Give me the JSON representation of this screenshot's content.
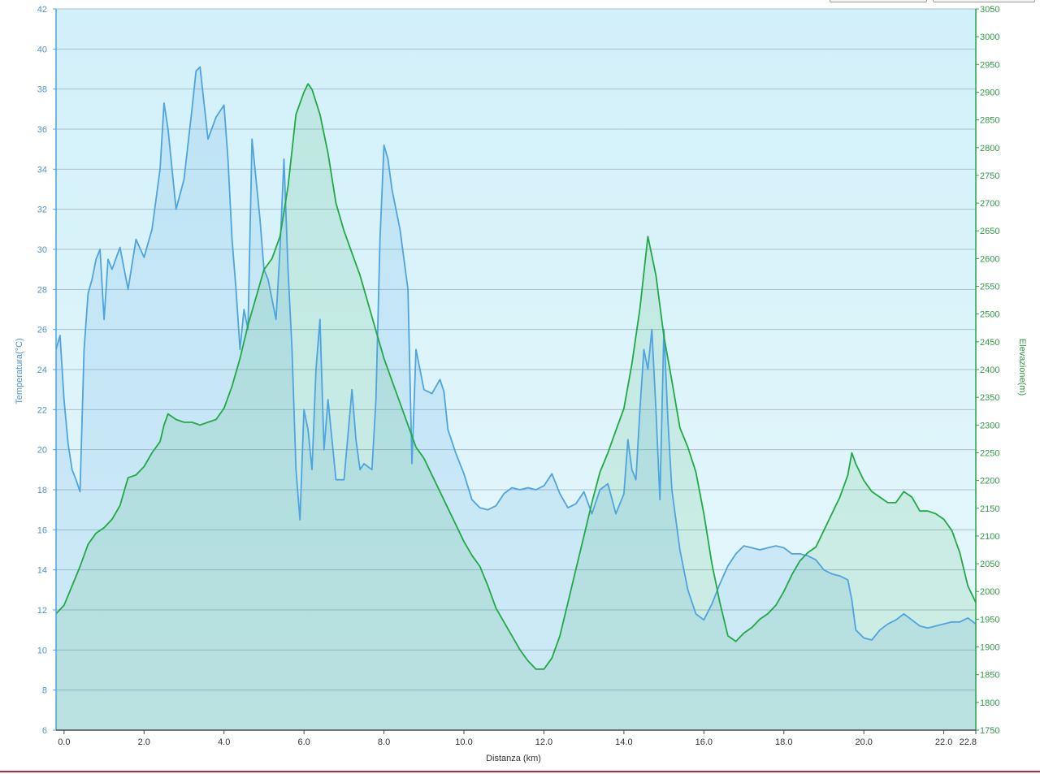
{
  "colors": {
    "temperature": "#4fa3e0",
    "elevation": "#22a845",
    "temp_axis_text": "#4f95cf",
    "elev_axis_text": "#2f9a46",
    "plot_bg_top": "#d2f0fa",
    "plot_bg_bottom": "#e7f8fb",
    "grid": "#a7c0cc",
    "bottom_rule": "#c0282d"
  },
  "chart_data": {
    "type": "line",
    "xlabel": "Distanza  (km)",
    "ylabel_left": "Temperatura(°C)",
    "ylabel_right": "Elevazione(m)",
    "x_ticks": [
      "0.0",
      "2.0",
      "4.0",
      "6.0",
      "8.0",
      "10.0",
      "12.0",
      "14.0",
      "16.0",
      "18.0",
      "20.0",
      "22.0",
      "22.8"
    ],
    "y_left_ticks": [
      "42",
      "40",
      "38",
      "36",
      "34",
      "32",
      "30",
      "28",
      "26",
      "24",
      "22",
      "20",
      "18",
      "16",
      "14",
      "12",
      "10",
      "8",
      "6"
    ],
    "y_right_ticks": [
      "3050",
      "3000",
      "2950",
      "2900",
      "2850",
      "2800",
      "2750",
      "2700",
      "2650",
      "2600",
      "2550",
      "2500",
      "2450",
      "2400",
      "2350",
      "2300",
      "2250",
      "2200",
      "2150",
      "2100",
      "2050",
      "2000",
      "1950",
      "1900",
      "1850",
      "1800",
      "1750"
    ],
    "xlim": [
      -0.2,
      22.8
    ],
    "ylim_left": [
      6,
      42
    ],
    "ylim_right": [
      1750,
      3050
    ],
    "grid": true,
    "series": [
      {
        "name": "Temperatura",
        "axis": "left",
        "x": [
          -0.2,
          -0.1,
          0.0,
          0.1,
          0.2,
          0.3,
          0.4,
          0.5,
          0.6,
          0.7,
          0.8,
          0.9,
          1.0,
          1.1,
          1.2,
          1.4,
          1.6,
          1.8,
          2.0,
          2.2,
          2.4,
          2.5,
          2.6,
          2.8,
          3.0,
          3.2,
          3.3,
          3.4,
          3.6,
          3.8,
          4.0,
          4.1,
          4.2,
          4.3,
          4.4,
          4.5,
          4.6,
          4.7,
          4.8,
          4.9,
          5.0,
          5.1,
          5.2,
          5.3,
          5.4,
          5.5,
          5.6,
          5.7,
          5.8,
          5.9,
          6.0,
          6.1,
          6.2,
          6.3,
          6.4,
          6.5,
          6.6,
          6.8,
          7.0,
          7.2,
          7.3,
          7.4,
          7.5,
          7.7,
          7.8,
          7.9,
          8.0,
          8.1,
          8.2,
          8.4,
          8.6,
          8.7,
          8.8,
          8.9,
          9.0,
          9.2,
          9.4,
          9.5,
          9.6,
          9.8,
          10.0,
          10.2,
          10.4,
          10.6,
          10.8,
          11.0,
          11.2,
          11.4,
          11.6,
          11.8,
          12.0,
          12.2,
          12.4,
          12.6,
          12.8,
          13.0,
          13.2,
          13.4,
          13.6,
          13.8,
          14.0,
          14.1,
          14.2,
          14.3,
          14.4,
          14.5,
          14.6,
          14.7,
          14.8,
          14.9,
          15.0,
          15.1,
          15.2,
          15.4,
          15.6,
          15.8,
          16.0,
          16.2,
          16.4,
          16.6,
          16.8,
          17.0,
          17.2,
          17.4,
          17.6,
          17.8,
          18.0,
          18.2,
          18.4,
          18.6,
          18.8,
          19.0,
          19.2,
          19.4,
          19.6,
          19.7,
          19.8,
          20.0,
          20.2,
          20.4,
          20.6,
          20.8,
          21.0,
          21.2,
          21.4,
          21.6,
          21.8,
          22.0,
          22.2,
          22.4,
          22.6,
          22.8
        ],
        "values": [
          25,
          25.7,
          22.5,
          20.3,
          19,
          18.5,
          17.9,
          25,
          27.8,
          28.5,
          29.5,
          30,
          26.5,
          29.5,
          29,
          30.1,
          28,
          30.5,
          29.6,
          31,
          34,
          37.3,
          36,
          32,
          33.5,
          37,
          38.9,
          39.1,
          35.5,
          36.6,
          37.2,
          34.5,
          30.5,
          28,
          25,
          27,
          26,
          35.5,
          33.5,
          31.5,
          29,
          28.5,
          27.5,
          26.5,
          30,
          34.5,
          29,
          25,
          19,
          16.5,
          22,
          21,
          19,
          24,
          26.5,
          20,
          22.5,
          18.5,
          18.5,
          23,
          20.5,
          19,
          19.3,
          19,
          22.5,
          30.5,
          35.2,
          34.5,
          33,
          31,
          28,
          19.3,
          25,
          24,
          23,
          22.8,
          23.5,
          22.9,
          21,
          19.8,
          18.8,
          17.5,
          17.1,
          17,
          17.2,
          17.8,
          18.1,
          18,
          18.1,
          18,
          18.2,
          18.8,
          17.8,
          17.1,
          17.3,
          17.9,
          16.8,
          18,
          18.3,
          16.8,
          17.8,
          20.5,
          19,
          18.5,
          22,
          25,
          24,
          26,
          22,
          17.5,
          26,
          21.5,
          18,
          15,
          13,
          11.8,
          11.5,
          12.3,
          13.3,
          14.2,
          14.8,
          15.2,
          15.1,
          15,
          15.1,
          15.2,
          15.1,
          14.8,
          14.8,
          14.7,
          14.5,
          14,
          13.8,
          13.7,
          13.5,
          12.5,
          11,
          10.6,
          10.5,
          11,
          11.3,
          11.5,
          11.8,
          11.5,
          11.2,
          11.1,
          11.2,
          11.3,
          11.4,
          11.4,
          11.6,
          11.3
        ],
        "color": "#4fa3e0"
      },
      {
        "name": "Elevazione",
        "axis": "right",
        "x": [
          -0.2,
          0.0,
          0.2,
          0.4,
          0.6,
          0.8,
          1.0,
          1.2,
          1.4,
          1.6,
          1.8,
          2.0,
          2.2,
          2.4,
          2.5,
          2.6,
          2.8,
          3.0,
          3.2,
          3.4,
          3.6,
          3.8,
          4.0,
          4.2,
          4.4,
          4.6,
          4.8,
          5.0,
          5.2,
          5.4,
          5.6,
          5.8,
          6.0,
          6.1,
          6.2,
          6.4,
          6.6,
          6.8,
          7.0,
          7.2,
          7.4,
          7.6,
          7.8,
          8.0,
          8.2,
          8.4,
          8.6,
          8.8,
          9.0,
          9.2,
          9.4,
          9.6,
          9.8,
          10.0,
          10.2,
          10.4,
          10.6,
          10.8,
          11.0,
          11.2,
          11.4,
          11.6,
          11.8,
          12.0,
          12.2,
          12.4,
          12.6,
          12.8,
          13.0,
          13.2,
          13.4,
          13.6,
          13.8,
          14.0,
          14.2,
          14.4,
          14.6,
          14.8,
          15.0,
          15.2,
          15.4,
          15.6,
          15.8,
          16.0,
          16.2,
          16.4,
          16.6,
          16.8,
          17.0,
          17.2,
          17.4,
          17.6,
          17.8,
          18.0,
          18.2,
          18.4,
          18.6,
          18.8,
          19.0,
          19.2,
          19.4,
          19.6,
          19.7,
          19.8,
          20.0,
          20.2,
          20.4,
          20.6,
          20.8,
          21.0,
          21.2,
          21.4,
          21.6,
          21.8,
          22.0,
          22.2,
          22.4,
          22.6,
          22.8
        ],
        "values": [
          1960,
          1975,
          2010,
          2045,
          2085,
          2105,
          2115,
          2130,
          2155,
          2205,
          2210,
          2225,
          2250,
          2270,
          2300,
          2320,
          2310,
          2305,
          2305,
          2300,
          2305,
          2310,
          2330,
          2370,
          2420,
          2480,
          2530,
          2580,
          2600,
          2640,
          2730,
          2860,
          2900,
          2915,
          2905,
          2860,
          2790,
          2700,
          2650,
          2610,
          2570,
          2520,
          2470,
          2420,
          2380,
          2340,
          2300,
          2260,
          2240,
          2210,
          2180,
          2150,
          2120,
          2090,
          2065,
          2045,
          2010,
          1970,
          1945,
          1920,
          1895,
          1875,
          1860,
          1860,
          1880,
          1920,
          1980,
          2040,
          2100,
          2160,
          2215,
          2250,
          2290,
          2330,
          2410,
          2510,
          2640,
          2570,
          2460,
          2380,
          2295,
          2260,
          2215,
          2140,
          2050,
          1980,
          1920,
          1910,
          1925,
          1935,
          1950,
          1960,
          1975,
          2000,
          2030,
          2055,
          2070,
          2080,
          2110,
          2140,
          2170,
          2210,
          2250,
          2230,
          2200,
          2180,
          2170,
          2160,
          2160,
          2180,
          2170,
          2145,
          2145,
          2140,
          2130,
          2110,
          2070,
          2010,
          1980
        ],
        "color": "#22a845"
      }
    ]
  }
}
